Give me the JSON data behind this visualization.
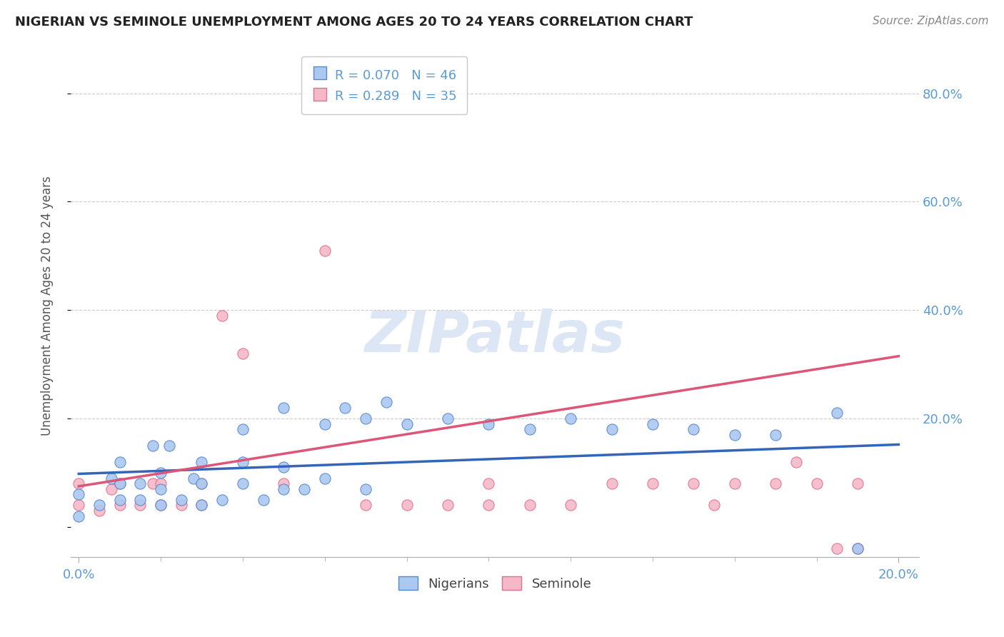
{
  "title": "NIGERIAN VS SEMINOLE UNEMPLOYMENT AMONG AGES 20 TO 24 YEARS CORRELATION CHART",
  "source": "Source: ZipAtlas.com",
  "ylabel": "Unemployment Among Ages 20 to 24 years",
  "xlim": [
    -0.002,
    0.205
  ],
  "ylim": [
    -0.055,
    0.87
  ],
  "ytick_positions": [
    0.0,
    0.2,
    0.4,
    0.6,
    0.8
  ],
  "ytick_labels_right": [
    "",
    "20.0%",
    "40.0%",
    "60.0%",
    "80.0%"
  ],
  "xtick_major": [
    0.0,
    0.2
  ],
  "xtick_minor": [
    0.02,
    0.04,
    0.06,
    0.08,
    0.1,
    0.12,
    0.14,
    0.16,
    0.18
  ],
  "xtick_labels": [
    "0.0%",
    "20.0%"
  ],
  "blue_R": 0.07,
  "blue_N": 46,
  "pink_R": 0.289,
  "pink_N": 35,
  "blue_label": "Nigerians",
  "pink_label": "Seminole",
  "title_color": "#222222",
  "source_color": "#888888",
  "axis_tick_color": "#5b9bd5",
  "blue_fill": "#aac8f0",
  "pink_fill": "#f5b8c8",
  "blue_edge": "#5588cc",
  "pink_edge": "#e07090",
  "blue_line_color": "#3366bb",
  "pink_line_color": "#dd5577",
  "grid_color": "#cccccc",
  "watermark_color": "#dce6f4",
  "blue_scatter_x": [
    0.0,
    0.0,
    0.005,
    0.008,
    0.01,
    0.01,
    0.01,
    0.015,
    0.015,
    0.018,
    0.02,
    0.02,
    0.02,
    0.022,
    0.025,
    0.028,
    0.03,
    0.03,
    0.03,
    0.035,
    0.04,
    0.04,
    0.04,
    0.045,
    0.05,
    0.05,
    0.05,
    0.055,
    0.06,
    0.06,
    0.065,
    0.07,
    0.07,
    0.075,
    0.08,
    0.09,
    0.1,
    0.11,
    0.12,
    0.13,
    0.14,
    0.15,
    0.16,
    0.17,
    0.185,
    0.19
  ],
  "blue_scatter_y": [
    0.02,
    0.06,
    0.04,
    0.09,
    0.05,
    0.08,
    0.12,
    0.05,
    0.08,
    0.15,
    0.04,
    0.07,
    0.1,
    0.15,
    0.05,
    0.09,
    0.04,
    0.08,
    0.12,
    0.05,
    0.08,
    0.12,
    0.18,
    0.05,
    0.07,
    0.11,
    0.22,
    0.07,
    0.09,
    0.19,
    0.22,
    0.07,
    0.2,
    0.23,
    0.19,
    0.2,
    0.19,
    0.18,
    0.2,
    0.18,
    0.19,
    0.18,
    0.17,
    0.17,
    0.21,
    -0.04
  ],
  "pink_scatter_x": [
    0.0,
    0.0,
    0.005,
    0.008,
    0.01,
    0.01,
    0.015,
    0.018,
    0.02,
    0.02,
    0.025,
    0.03,
    0.03,
    0.035,
    0.04,
    0.05,
    0.06,
    0.07,
    0.08,
    0.09,
    0.1,
    0.1,
    0.11,
    0.12,
    0.13,
    0.14,
    0.15,
    0.155,
    0.16,
    0.17,
    0.175,
    0.18,
    0.185,
    0.19,
    0.19
  ],
  "pink_scatter_y": [
    0.04,
    0.08,
    0.03,
    0.07,
    0.04,
    0.08,
    0.04,
    0.08,
    0.04,
    0.08,
    0.04,
    0.04,
    0.08,
    0.39,
    0.32,
    0.08,
    0.51,
    0.04,
    0.04,
    0.04,
    0.04,
    0.08,
    0.04,
    0.04,
    0.08,
    0.08,
    0.08,
    0.04,
    0.08,
    0.08,
    0.12,
    0.08,
    -0.04,
    0.08,
    -0.04
  ],
  "blue_line_x": [
    0.0,
    0.2
  ],
  "blue_line_y": [
    0.098,
    0.152
  ],
  "pink_line_x": [
    0.0,
    0.2
  ],
  "pink_line_y": [
    0.075,
    0.315
  ]
}
